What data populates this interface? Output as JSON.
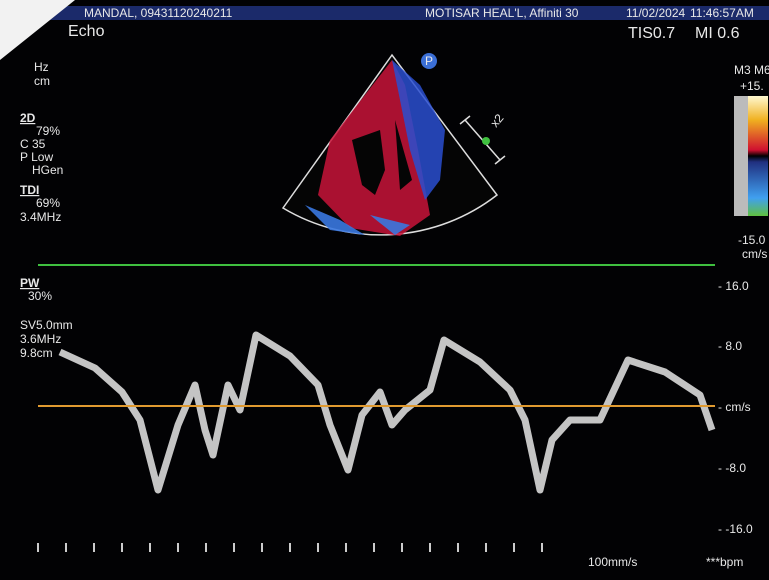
{
  "header": {
    "patient": "MANDAL, 09431120240211",
    "institution": "MOTISAR HEAL'L, Affiniti 30",
    "date": "11/02/2024",
    "time": "11:46:57AM"
  },
  "mode": "Echo",
  "tis": "TIS0.7",
  "mi": "MI 0.6",
  "left_params": [
    "Hz",
    "cm"
  ],
  "twod": {
    "title": "2D",
    "lines": [
      "79%",
      "C 35",
      "P Low",
      "HGen"
    ]
  },
  "tdi": {
    "title": "TDI",
    "lines": [
      "69%",
      "3.4MHz"
    ]
  },
  "probe_icon": "P",
  "zoom_label": "x2",
  "color_bar": {
    "title": "M3 M6",
    "top": "+15.",
    "bottom": "-15.0",
    "unit": "cm/s"
  },
  "pw": {
    "title": "PW",
    "lines": [
      "30%",
      "SV5.0mm",
      "3.6MHz",
      "9.8cm"
    ]
  },
  "velocity_scale": [
    "- 16.0",
    "- 8.0",
    "- cm/s",
    "- -8.0",
    "- -16.0"
  ],
  "sweep_speed": "100mm/s",
  "heart_rate": "***bpm"
}
